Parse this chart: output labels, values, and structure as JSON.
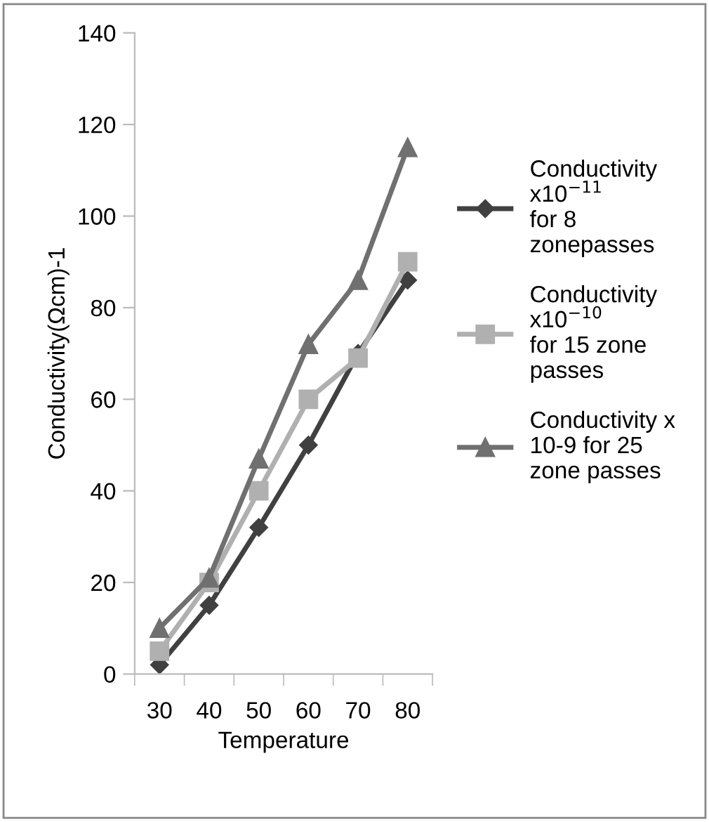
{
  "chart_data": {
    "type": "line",
    "xlabel": "Temperature",
    "ylabel": "Conductivity(Ωcm)-1",
    "categories": [
      "30",
      "40",
      "50",
      "60",
      "70",
      "80"
    ],
    "series": [
      {
        "name": "Conductivity x10$^{−11}$ for 8 zonepasses",
        "color": "#404040",
        "marker": "diamond",
        "values": [
          2,
          15,
          32,
          50,
          70,
          86
        ]
      },
      {
        "name": "Conductivity x10$^{−10}$ for 15 zone passes",
        "color": "#b0b0b0",
        "marker": "square",
        "values": [
          5,
          20,
          40,
          60,
          69,
          90
        ]
      },
      {
        "name": "Conductivity x 10-9 for 25 zone passes",
        "color": "#707070",
        "marker": "triangle",
        "values": [
          10,
          21,
          47,
          72,
          86,
          115
        ]
      }
    ],
    "ylim": [
      0,
      140
    ],
    "yticks": [
      0,
      20,
      40,
      60,
      80,
      100,
      120,
      140
    ],
    "grid": false,
    "legend": "right",
    "line_style": "solid"
  }
}
